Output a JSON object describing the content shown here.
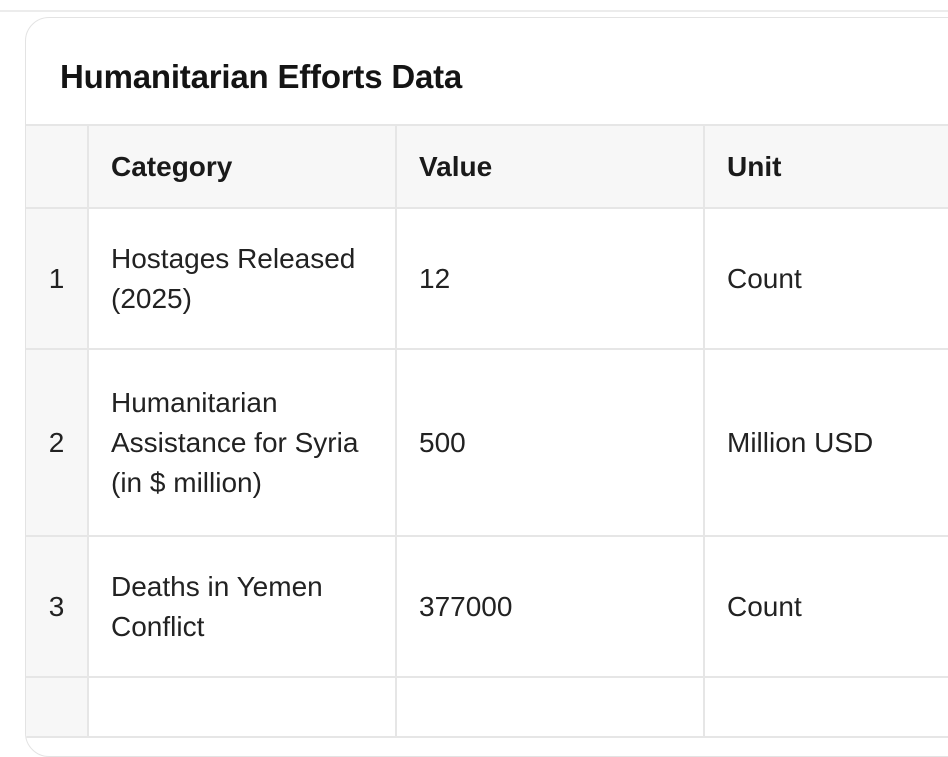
{
  "card": {
    "title": "Humanitarian Efforts Data"
  },
  "table": {
    "headers": {
      "index": "",
      "category": "Category",
      "value": "Value",
      "unit": "Unit"
    },
    "rows": [
      {
        "index": "1",
        "category": "Hostages Released (2025)",
        "value": "12",
        "unit": "Count"
      },
      {
        "index": "2",
        "category": "Humanitarian Assistance for Syria (in $ million)",
        "value": "500",
        "unit": "Million USD"
      },
      {
        "index": "3",
        "category": "Deaths in Yemen Conflict",
        "value": "377000",
        "unit": "Count"
      },
      {
        "index": "",
        "category": "",
        "value": "",
        "unit": ""
      }
    ]
  },
  "colors": {
    "border": "#e6e6e6",
    "header_bg": "#f7f7f7",
    "card_bg": "#ffffff",
    "text": "#1a1a1a"
  }
}
